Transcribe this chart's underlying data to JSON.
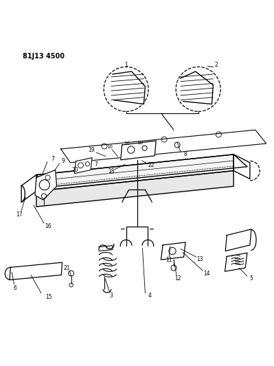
{
  "title": "81J13 4500",
  "bg_color": "#ffffff",
  "line_color": "#000000",
  "fig_width": 3.99,
  "fig_height": 5.33,
  "dpi": 100
}
